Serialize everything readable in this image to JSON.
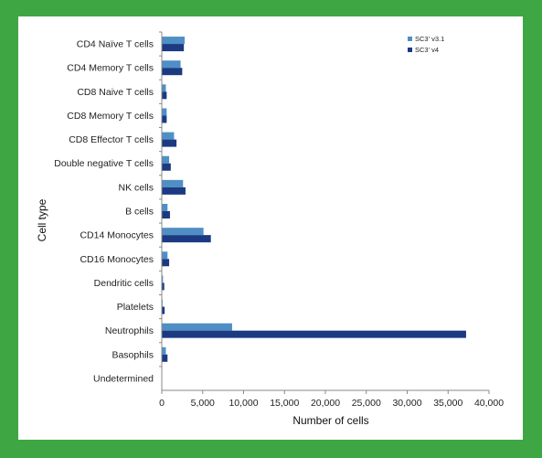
{
  "chart_data": {
    "type": "bar",
    "orientation": "horizontal",
    "categories": [
      "CD4 Naïve T cells",
      "CD4 Memory T cells",
      "CD8 Naive T cells",
      "CD8 Memory T cells",
      "CD8 Effector T cells",
      "Double negative T cells",
      "NK cells",
      "B cells",
      "CD14 Monocytes",
      "CD16 Monocytes",
      "Dendritic cells",
      "Platelets",
      "Neutrophils",
      "Basophils",
      "Undetermined"
    ],
    "series": [
      {
        "name": "SC3' v3.1",
        "color": "#4f8fc6",
        "values": [
          2800,
          2300,
          500,
          600,
          1500,
          900,
          2600,
          700,
          5100,
          700,
          150,
          100,
          8600,
          500,
          0
        ]
      },
      {
        "name": "SC3' v4",
        "color": "#1c3a82",
        "values": [
          2700,
          2500,
          600,
          600,
          1800,
          1100,
          2900,
          1000,
          6000,
          900,
          300,
          350,
          37200,
          700,
          0
        ]
      }
    ],
    "xlabel": "Number of cells",
    "ylabel": "Cell type",
    "xlim": [
      0,
      40000
    ],
    "xticks": [
      "0",
      "5,000",
      "10,000",
      "15,000",
      "20,000",
      "25,000",
      "30,000",
      "35,000",
      "40,000"
    ],
    "xtick_values": [
      0,
      5000,
      10000,
      15000,
      20000,
      25000,
      30000,
      35000,
      40000
    ],
    "grid": false,
    "legend_position": "top-right"
  }
}
